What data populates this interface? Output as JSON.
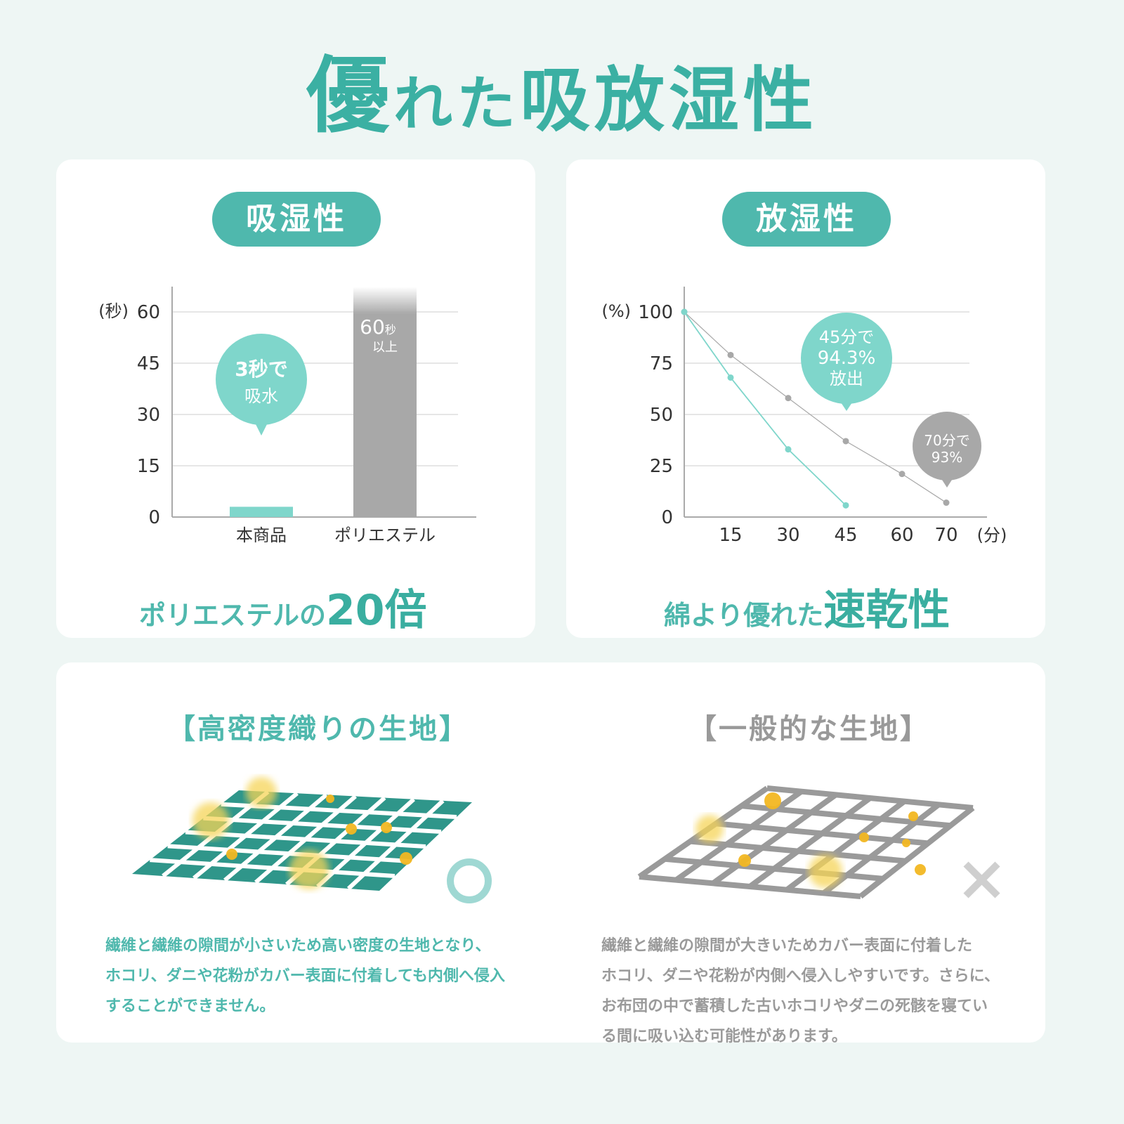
{
  "title": {
    "part1": "優",
    "part2": "れた",
    "part3": "吸放湿性"
  },
  "colors": {
    "accent": "#4fb8ad",
    "teal_light": "#7fd6cb",
    "gray": "#a8a8a8",
    "background": "#eef6f4",
    "dust": "#f5c400"
  },
  "absorb": {
    "badge": "吸湿性",
    "caption_prefix": "ポリエステルの",
    "caption_highlight": "20倍",
    "bubble": {
      "line1": "3秒で",
      "line2": "吸水"
    },
    "bar_label": {
      "line1": "60",
      "unit": "秒",
      "line2": "以上"
    }
  },
  "release": {
    "badge": "放湿性",
    "caption_prefix": "綿より優れた",
    "caption_highlight": "速乾性",
    "bubble_teal": {
      "line1": "45分で",
      "line2": "94.3%",
      "line3": "放出"
    },
    "bubble_gray": {
      "line1": "70分で",
      "line2": "93%"
    }
  },
  "chart_data": [
    {
      "type": "bar",
      "ylabel": "(秒)",
      "ylim": [
        0,
        60
      ],
      "yticks": [
        "0",
        "15",
        "30",
        "45",
        "60"
      ],
      "categories": [
        "本商品",
        "ポリエステル"
      ],
      "values": [
        3,
        60
      ],
      "value_note": "60秒以上 (bar extends beyond axis)",
      "grid": true
    },
    {
      "type": "line",
      "ylabel": "(%)",
      "xlabel": "(分)",
      "ylim": [
        0,
        100
      ],
      "yticks": [
        "0",
        "25",
        "50",
        "75",
        "100"
      ],
      "xticks": [
        "15",
        "30",
        "45",
        "60",
        "70"
      ],
      "grid": true,
      "series": [
        {
          "color": "#7fd6cb",
          "x": [
            0,
            15,
            30,
            45
          ],
          "y": [
            100,
            68,
            33,
            5.7
          ]
        },
        {
          "color": "#a8a8a8",
          "x": [
            0,
            15,
            30,
            45,
            60,
            70
          ],
          "y": [
            100,
            79,
            58,
            37,
            21,
            7
          ]
        }
      ]
    }
  ],
  "fabric": {
    "good": {
      "heading": "【高密度織りの生地】",
      "mark": "○",
      "text": [
        "繊維と繊維の隙間が小さいため高い密度の生地となり、",
        "ホコリ、ダニや花粉がカバー表面に付着しても内側へ侵入",
        "することができません。"
      ]
    },
    "bad": {
      "heading": "【一般的な生地】",
      "mark": "×",
      "text": [
        "繊維と繊維の隙間が大きいためカバー表面に付着した",
        "ホコリ、ダニや花粉が内側へ侵入しやすいです。さらに、",
        "お布団の中で蓄積した古いホコリやダニの死骸を寝てい",
        "る間に吸い込む可能性があります。"
      ]
    }
  }
}
